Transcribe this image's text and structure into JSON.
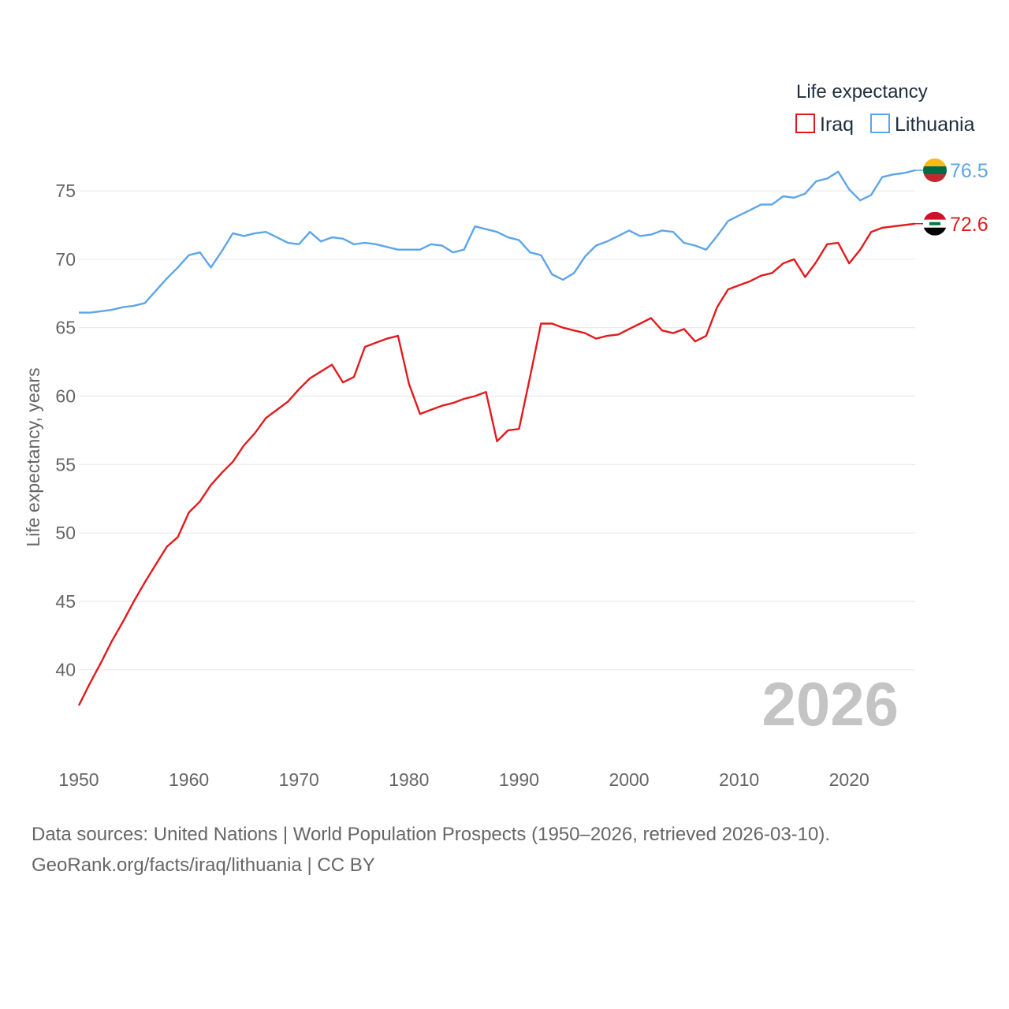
{
  "chart_data": {
    "type": "line",
    "xlabel": "",
    "ylabel": "Life expectancy, years",
    "xlim": [
      1950,
      2026
    ],
    "ylim": [
      34.8,
      78
    ],
    "x_ticks": [
      1950,
      1960,
      1970,
      1980,
      1990,
      2000,
      2010,
      2020
    ],
    "y_ticks": [
      40,
      45,
      50,
      55,
      60,
      65,
      70,
      75
    ],
    "legend_title": "Life expectancy",
    "legend_position": "top-right",
    "grid": true,
    "current_year_label": "2026",
    "x": [
      1950,
      1951,
      1952,
      1953,
      1954,
      1955,
      1956,
      1957,
      1958,
      1959,
      1960,
      1961,
      1962,
      1963,
      1964,
      1965,
      1966,
      1967,
      1968,
      1969,
      1970,
      1971,
      1972,
      1973,
      1974,
      1975,
      1976,
      1977,
      1978,
      1979,
      1980,
      1981,
      1982,
      1983,
      1984,
      1985,
      1986,
      1987,
      1988,
      1989,
      1990,
      1991,
      1992,
      1993,
      1994,
      1995,
      1996,
      1997,
      1998,
      1999,
      2000,
      2001,
      2002,
      2003,
      2004,
      2005,
      2006,
      2007,
      2008,
      2009,
      2010,
      2011,
      2012,
      2013,
      2014,
      2015,
      2016,
      2017,
      2018,
      2019,
      2020,
      2021,
      2022,
      2023,
      2024,
      2025,
      2026
    ],
    "series": [
      {
        "name": "Iraq",
        "color": "#e31a1c",
        "end_label": "72.6",
        "flag_icon": "iraq-flag-icon",
        "values": [
          37.4,
          39.0,
          40.5,
          42.1,
          43.5,
          45.0,
          46.4,
          47.7,
          49.0,
          49.7,
          51.5,
          52.3,
          53.5,
          54.4,
          55.2,
          56.4,
          57.3,
          58.4,
          59.0,
          59.6,
          60.5,
          61.3,
          61.8,
          62.3,
          61.0,
          61.4,
          63.6,
          63.9,
          64.2,
          64.4,
          60.9,
          58.7,
          59.0,
          59.3,
          59.5,
          59.8,
          60.0,
          60.3,
          56.7,
          57.5,
          57.6,
          61.4,
          65.3,
          65.3,
          65.0,
          64.8,
          64.6,
          64.2,
          64.4,
          64.5,
          64.9,
          65.3,
          65.7,
          64.8,
          64.6,
          64.9,
          64.0,
          64.4,
          66.5,
          67.8,
          68.1,
          68.4,
          68.8,
          69.0,
          69.7,
          70.0,
          68.7,
          69.8,
          71.1,
          71.2,
          69.7,
          70.7,
          72.0,
          72.3,
          72.4,
          72.5,
          72.6
        ]
      },
      {
        "name": "Lithuania",
        "color": "#5da5e8",
        "end_label": "76.5",
        "flag_icon": "lithuania-flag-icon",
        "values": [
          66.1,
          66.1,
          66.2,
          66.3,
          66.5,
          66.6,
          66.8,
          67.7,
          68.6,
          69.4,
          70.3,
          70.5,
          69.4,
          70.6,
          71.9,
          71.7,
          71.9,
          72.0,
          71.6,
          71.2,
          71.1,
          72.0,
          71.3,
          71.6,
          71.5,
          71.1,
          71.2,
          71.1,
          70.9,
          70.7,
          70.7,
          70.7,
          71.1,
          71.0,
          70.5,
          70.7,
          72.4,
          72.2,
          72.0,
          71.6,
          71.4,
          70.5,
          70.3,
          68.9,
          68.5,
          69.0,
          70.2,
          71.0,
          71.3,
          71.7,
          72.1,
          71.7,
          71.8,
          72.1,
          72.0,
          71.2,
          71.0,
          70.7,
          71.7,
          72.8,
          73.2,
          73.6,
          74.0,
          74.0,
          74.6,
          74.5,
          74.8,
          75.7,
          75.9,
          76.4,
          75.1,
          74.3,
          74.7,
          76.0,
          76.2,
          76.3,
          76.5
        ]
      }
    ]
  },
  "footer": {
    "source_line": "Data sources: United Nations | World Population Prospects (1950–2026, retrieved 2026-03-10).",
    "credit_line": "GeoRank.org/facts/iraq/lithuania | CC BY"
  }
}
